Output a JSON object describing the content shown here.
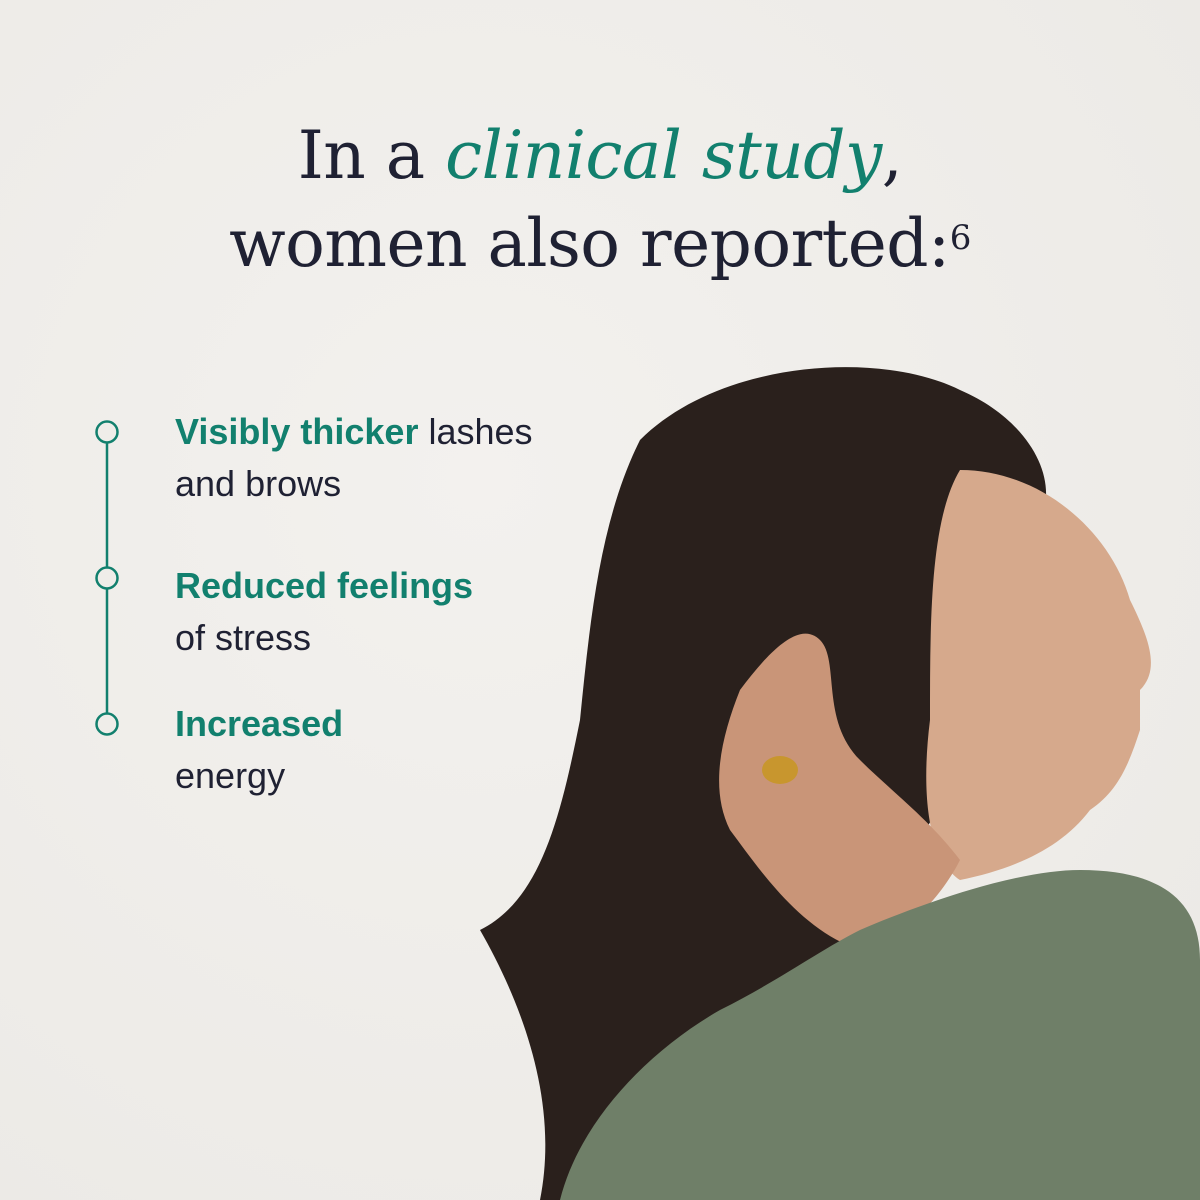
{
  "headline": {
    "line1_prefix": "In a ",
    "line1_accent": "clinical study",
    "line1_suffix": ",",
    "line2": "women also reported:",
    "footnote": "6"
  },
  "benefits": [
    {
      "highlight": "Visibly thicker",
      "rest_line1": " lashes",
      "rest_line2": "and brows"
    },
    {
      "highlight": "Reduced feelings",
      "rest_line1": "",
      "rest_line2": "of stress"
    },
    {
      "highlight": "Increased",
      "rest_line1": "",
      "rest_line2": "energy"
    }
  ],
  "colors": {
    "accent": "#12806e",
    "text": "#1f2133",
    "background": "#efede9",
    "sweater": "#6f7f68",
    "hair": "#2a201c"
  },
  "icons": [
    "timeline-circle-icon"
  ]
}
